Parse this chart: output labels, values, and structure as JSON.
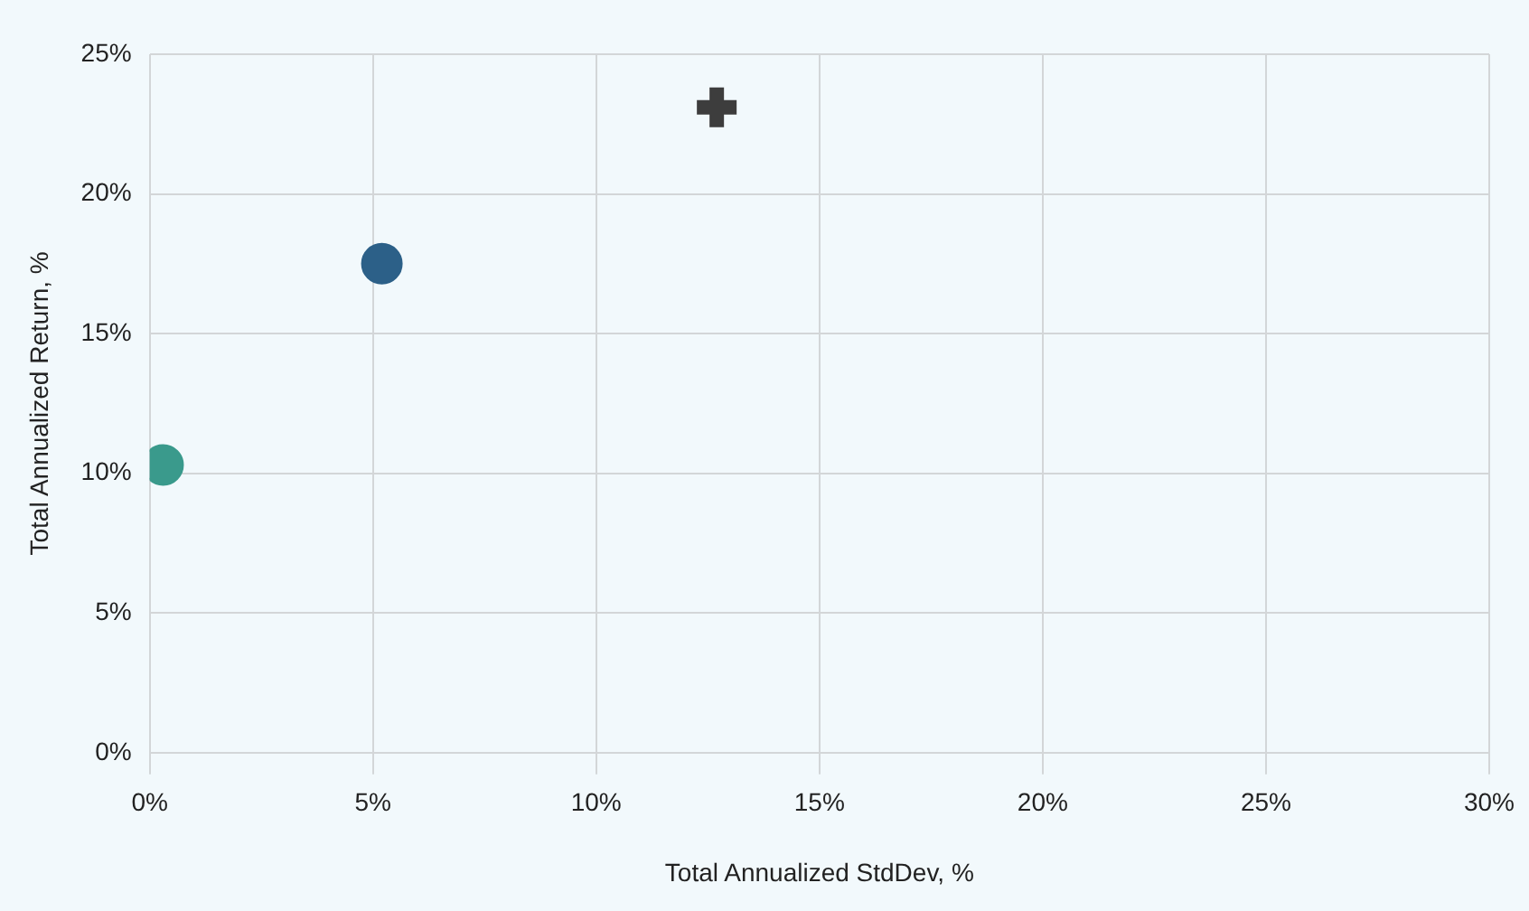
{
  "chart_data": {
    "type": "scatter",
    "xlabel": "Total Annualized StdDev, %",
    "ylabel": "Total Annualized Return, %",
    "series": [
      {
        "color": "#3a9a8c",
        "marker": "circle",
        "x": [
          0.3
        ],
        "values": [
          10.3
        ]
      },
      {
        "color": "#2c6088",
        "marker": "circle",
        "x": [
          5.2
        ],
        "values": [
          17.5
        ]
      },
      {
        "color": "#3d3d3d",
        "marker": "cross",
        "x": [
          12.7
        ],
        "values": [
          23.1
        ]
      }
    ],
    "xlim": [
      0,
      30
    ],
    "ylim": [
      0,
      25
    ],
    "xticks": [
      {
        "value": 0,
        "label": "0%"
      },
      {
        "value": 5,
        "label": "5%"
      },
      {
        "value": 10,
        "label": "10%"
      },
      {
        "value": 15,
        "label": "15%"
      },
      {
        "value": 20,
        "label": "20%"
      },
      {
        "value": 25,
        "label": "25%"
      },
      {
        "value": 30,
        "label": "30%"
      }
    ],
    "yticks": [
      {
        "value": 0,
        "label": "0%"
      },
      {
        "value": 5,
        "label": "5%"
      },
      {
        "value": 10,
        "label": "10%"
      },
      {
        "value": 15,
        "label": "15%"
      },
      {
        "value": 20,
        "label": "20%"
      },
      {
        "value": 25,
        "label": "25%"
      }
    ],
    "grid": true,
    "legend": false
  }
}
